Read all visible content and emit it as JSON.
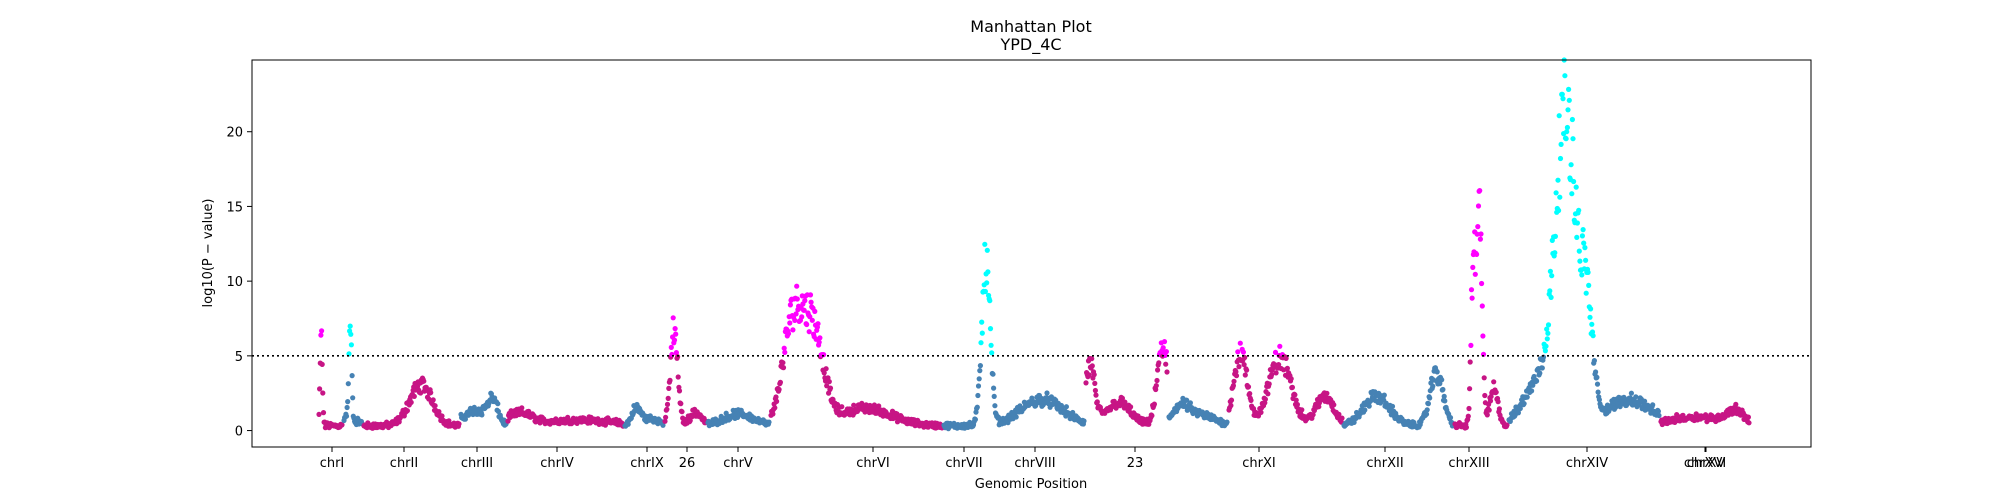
{
  "chart_data": {
    "type": "scatter",
    "title": "Manhattan Plot",
    "subtitle": "YPD_4C",
    "xlabel": "Genomic Position",
    "ylabel": "log10(P − value)",
    "ylim": [
      -1.1,
      24.8
    ],
    "yticks": [
      0,
      5,
      10,
      15,
      20
    ],
    "threshold": 5,
    "grid": false,
    "legend": "none",
    "colors": {
      "odd_chromosome": "#c71585",
      "even_chromosome": "#4682b4",
      "odd_significant": "#ff00ff",
      "even_significant": "#00ffff",
      "threshold_line": "#000000"
    },
    "chromosomes": [
      {
        "label": "chrI",
        "peaks": [
          [
            0.1,
            5.9,
            0.05
          ]
        ]
      },
      {
        "label": "chrII",
        "peaks": [
          [
            0.08,
            0.6,
            0.15
          ],
          [
            0.35,
            6.5,
            0.08
          ],
          [
            0.75,
            0.3,
            0.2
          ]
        ]
      },
      {
        "label": "chrIII",
        "peaks": [
          [
            0.6,
            2.8,
            0.12
          ]
        ]
      },
      {
        "label": "chrIV",
        "peaks": [
          [
            0.3,
            1.0,
            0.25
          ],
          [
            0.7,
            1.6,
            0.12
          ]
        ]
      },
      {
        "label": "chrIX",
        "peaks": [
          [
            0.1,
            0.8,
            0.1
          ],
          [
            0.6,
            0.4,
            0.3
          ]
        ]
      },
      {
        "label": "26",
        "peaks": [
          [
            0.3,
            1.2,
            0.12
          ],
          [
            0.7,
            0.5,
            0.2
          ]
        ]
      },
      {
        "label": "chrV",
        "peaks": [
          [
            0.22,
            6.6,
            0.09
          ],
          [
            0.75,
            0.9,
            0.15
          ]
        ]
      },
      {
        "label": "chrVI",
        "peaks": [
          [
            0.5,
            0.8,
            0.25
          ]
        ]
      },
      {
        "label": "chrVII",
        "peaks": [
          [
            0.13,
            7.2,
            0.06
          ],
          [
            0.25,
            6.2,
            0.06
          ],
          [
            0.55,
            1.2,
            0.15
          ]
        ]
      },
      {
        "label": "chrVIII",
        "peaks": [
          [
            0.3,
            11.0,
            0.03
          ],
          [
            0.7,
            1.8,
            0.15
          ]
        ]
      },
      {
        "label": "23",
        "peaks": [
          [
            0.05,
            4.0,
            0.06
          ],
          [
            0.4,
            1.6,
            0.15
          ],
          [
            0.95,
            5.4,
            0.07
          ]
        ]
      },
      {
        "label": "chrXI",
        "peaks": [
          [
            0.2,
            1.2,
            0.15
          ],
          [
            0.55,
            0.7,
            0.25
          ]
        ]
      },
      {
        "label": "chrXII",
        "peaks": [
          [
            0.1,
            4.8,
            0.06
          ],
          [
            0.45,
            4.6,
            0.1
          ],
          [
            0.85,
            2.0,
            0.08
          ]
        ]
      },
      {
        "label": "chrXIII",
        "peaks": [
          [
            0.3,
            2.0,
            0.12
          ],
          [
            0.85,
            3.6,
            0.06
          ]
        ]
      },
      {
        "label": "chrXIV",
        "peaks": [
          [
            0.35,
            11.5,
            0.04
          ],
          [
            0.47,
            15.0,
            0.05
          ],
          [
            0.75,
            2.5,
            0.08
          ]
        ]
      },
      {
        "label": "chrXV",
        "peaks": [
          [
            0.2,
            3.0,
            0.1
          ],
          [
            0.38,
            21.0,
            0.07
          ],
          [
            0.52,
            7.0,
            0.04
          ],
          [
            0.8,
            1.8,
            0.15
          ]
        ]
      },
      {
        "label": "chrXVI",
        "peaks": [
          [
            0.4,
            0.6,
            0.3
          ],
          [
            0.85,
            0.9,
            0.1
          ]
        ]
      }
    ]
  }
}
